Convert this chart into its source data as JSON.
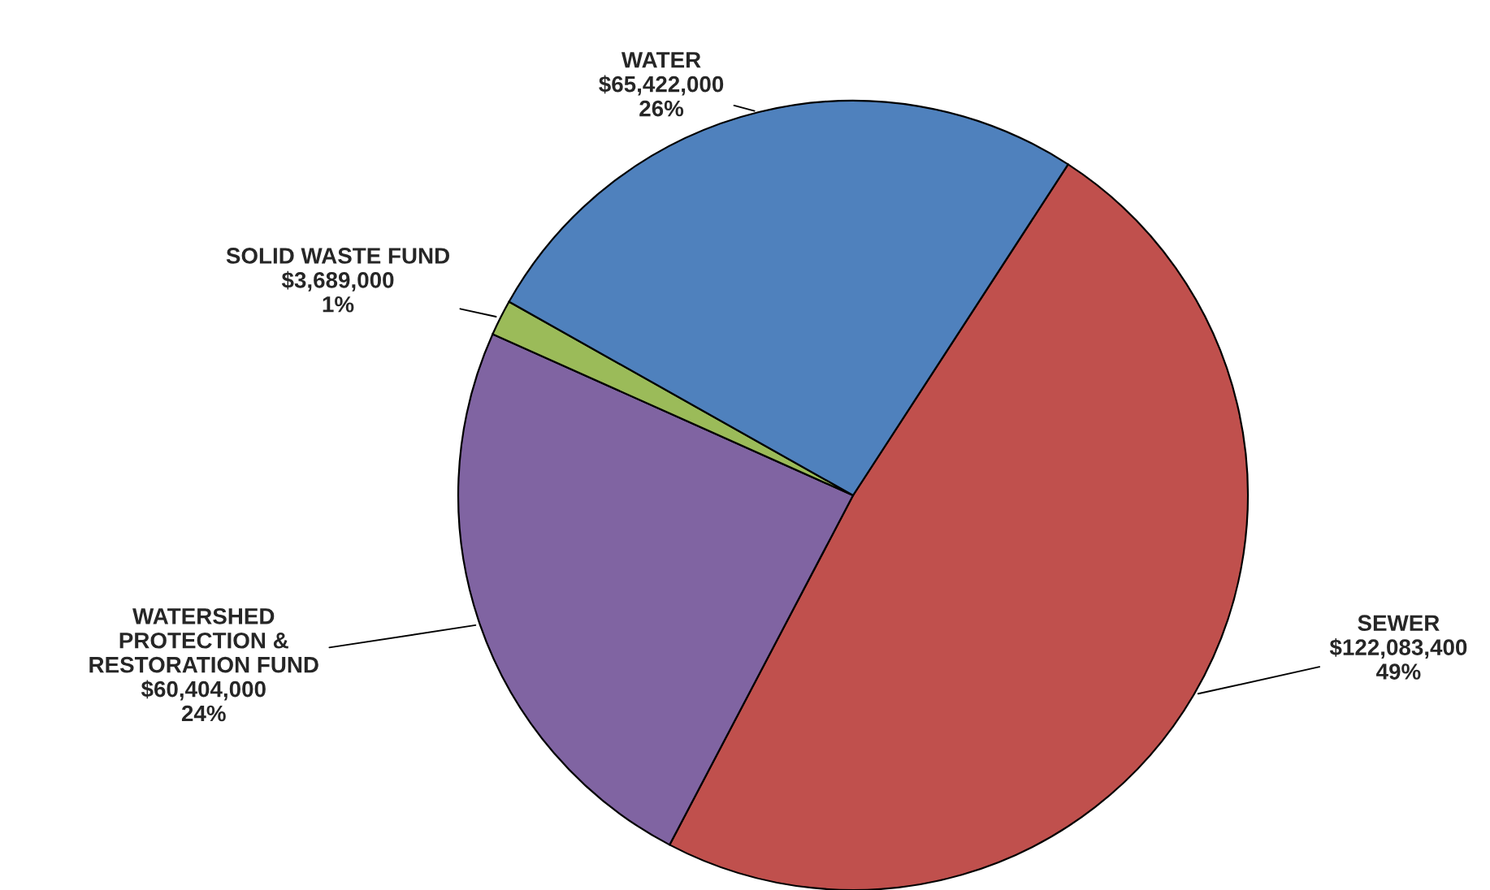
{
  "chart_data": {
    "type": "pie",
    "categories": [
      "SEWER",
      "WATERSHED\nPROTECTION &\nRESTORATION FUND",
      "SOLID WASTE FUND",
      "WATER"
    ],
    "values": [
      122083400,
      60404000,
      3689000,
      65422000
    ],
    "colors": [
      "#c0504d",
      "#8064a2",
      "#9bbb59",
      "#4f81bd"
    ],
    "value_labels": [
      "$122,083,400\n49%",
      "$60,404,000\n24%",
      "$3,689,000\n1%",
      "$65,422,000\n26%"
    ],
    "legend": false
  }
}
